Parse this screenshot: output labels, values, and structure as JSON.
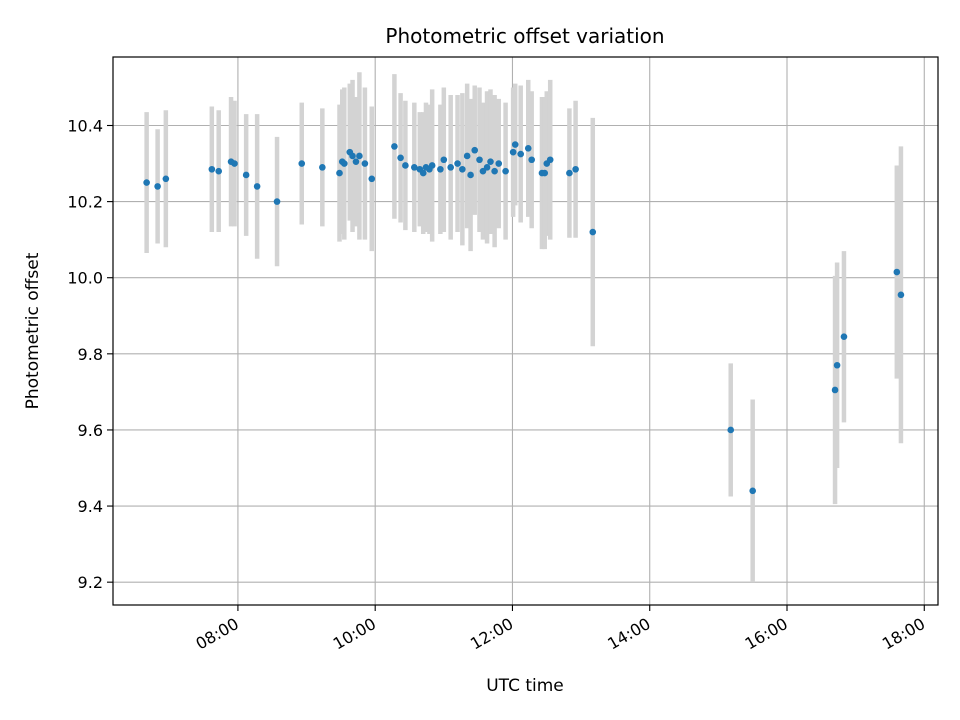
{
  "chart_data": {
    "type": "scatter",
    "title": "Photometric offset variation",
    "xlabel": "UTC time",
    "ylabel": "Photometric offset",
    "x_unit": "hours UTC",
    "xlim": [
      6.18,
      18.2
    ],
    "ylim": [
      9.14,
      10.58
    ],
    "grid": true,
    "x_ticks": [
      8,
      10,
      12,
      14,
      16,
      18
    ],
    "x_tick_labels": [
      "08:00",
      "10:00",
      "12:00",
      "14:00",
      "16:00",
      "18:00"
    ],
    "y_ticks": [
      9.2,
      9.4,
      9.6,
      9.8,
      10.0,
      10.2,
      10.4
    ],
    "y_tick_labels": [
      "9.2",
      "9.4",
      "9.6",
      "9.8",
      "10.0",
      "10.2",
      "10.4"
    ],
    "colors": {
      "point": "#1f77b4",
      "errorbar": "#d3d3d3",
      "grid": "#b0b0b0"
    },
    "series": [
      {
        "x": [
          6.67,
          6.83,
          6.95,
          7.62,
          7.72,
          7.9,
          7.95,
          8.12,
          8.28,
          8.57,
          8.93,
          9.23,
          9.48,
          9.52,
          9.55,
          9.63,
          9.67,
          9.72,
          9.77,
          9.85,
          9.95,
          10.28,
          10.37,
          10.44,
          10.57,
          10.65,
          10.7,
          10.74,
          10.79,
          10.83,
          10.95,
          11.0,
          11.1,
          11.2,
          11.27,
          11.34,
          11.39,
          11.45,
          11.52,
          11.57,
          11.63,
          11.68,
          11.74,
          11.8,
          11.9,
          12.01,
          12.04,
          12.12,
          12.23,
          12.28,
          12.43,
          12.47,
          12.5,
          12.55,
          12.83,
          12.92,
          13.17,
          15.18,
          15.5,
          16.7,
          16.73,
          16.83,
          17.6,
          17.66
        ],
        "y": [
          10.25,
          10.24,
          10.26,
          10.285,
          10.28,
          10.305,
          10.3,
          10.27,
          10.24,
          10.2,
          10.3,
          10.29,
          10.275,
          10.305,
          10.3,
          10.33,
          10.32,
          10.305,
          10.32,
          10.3,
          10.26,
          10.345,
          10.315,
          10.295,
          10.29,
          10.285,
          10.275,
          10.29,
          10.285,
          10.295,
          10.285,
          10.31,
          10.29,
          10.3,
          10.285,
          10.32,
          10.27,
          10.335,
          10.31,
          10.28,
          10.29,
          10.305,
          10.28,
          10.3,
          10.28,
          10.33,
          10.35,
          10.325,
          10.34,
          10.31,
          10.275,
          10.275,
          10.3,
          10.31,
          10.275,
          10.285,
          10.12,
          9.6,
          9.44,
          9.705,
          9.77,
          9.845,
          10.015,
          9.955
        ],
        "yerr": [
          0.185,
          0.15,
          0.18,
          0.165,
          0.16,
          0.17,
          0.165,
          0.16,
          0.19,
          0.17,
          0.16,
          0.155,
          0.18,
          0.19,
          0.2,
          0.18,
          0.2,
          0.17,
          0.22,
          0.2,
          0.19,
          0.19,
          0.17,
          0.17,
          0.17,
          0.15,
          0.16,
          0.17,
          0.17,
          0.2,
          0.17,
          0.19,
          0.19,
          0.18,
          0.2,
          0.19,
          0.2,
          0.17,
          0.19,
          0.18,
          0.2,
          0.19,
          0.2,
          0.17,
          0.18,
          0.17,
          0.16,
          0.18,
          0.18,
          0.18,
          0.2,
          0.2,
          0.19,
          0.21,
          0.17,
          0.18,
          0.3,
          0.175,
          0.24,
          0.3,
          0.27,
          0.225,
          0.28,
          0.39
        ]
      }
    ]
  }
}
